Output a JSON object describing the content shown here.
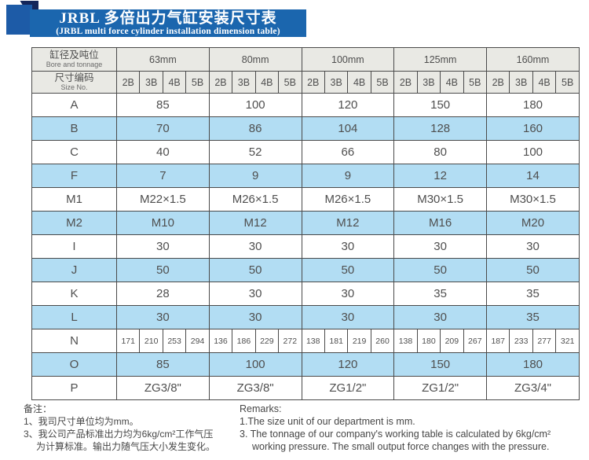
{
  "banner": {
    "title_zh": "JRBL 多倍出力气缸安装尺寸表",
    "title_en": "(JRBL multi force cylinder installation dimension table)",
    "banner_color": "#1b66ae",
    "square_color": "#1d5ba7",
    "fold_color": "#14265a"
  },
  "table": {
    "header": {
      "bore_label_zh": "缸径及吨位",
      "bore_label_en": "Bore and tonnage",
      "size_label_zh": "尺寸编码",
      "size_label_en": "Size No.",
      "groups": [
        "63mm",
        "80mm",
        "100mm",
        "125mm",
        "160mm"
      ],
      "sub_columns": [
        "2B",
        "3B",
        "4B",
        "5B"
      ]
    },
    "rows": [
      {
        "label": "A",
        "type": "group",
        "shade": "white",
        "values": [
          "85",
          "100",
          "120",
          "150",
          "180"
        ]
      },
      {
        "label": "B",
        "type": "group",
        "shade": "blue",
        "values": [
          "70",
          "86",
          "104",
          "128",
          "160"
        ]
      },
      {
        "label": "C",
        "type": "group",
        "shade": "white",
        "values": [
          "40",
          "52",
          "66",
          "80",
          "100"
        ]
      },
      {
        "label": "F",
        "type": "group",
        "shade": "blue",
        "values": [
          "7",
          "9",
          "9",
          "12",
          "14"
        ]
      },
      {
        "label": "M1",
        "type": "group",
        "shade": "white",
        "values": [
          "M22×1.5",
          "M26×1.5",
          "M26×1.5",
          "M30×1.5",
          "M30×1.5"
        ]
      },
      {
        "label": "M2",
        "type": "group",
        "shade": "blue",
        "values": [
          "M10",
          "M12",
          "M12",
          "M16",
          "M20"
        ]
      },
      {
        "label": "I",
        "type": "group",
        "shade": "white",
        "values": [
          "30",
          "30",
          "30",
          "30",
          "30"
        ]
      },
      {
        "label": "J",
        "type": "group",
        "shade": "blue",
        "values": [
          "50",
          "50",
          "50",
          "50",
          "50"
        ]
      },
      {
        "label": "K",
        "type": "group",
        "shade": "white",
        "values": [
          "28",
          "30",
          "30",
          "35",
          "35"
        ]
      },
      {
        "label": "L",
        "type": "group",
        "shade": "blue",
        "values": [
          "30",
          "30",
          "30",
          "30",
          "35"
        ]
      },
      {
        "label": "N",
        "type": "sub",
        "shade": "white",
        "values": [
          "171",
          "210",
          "253",
          "294",
          "136",
          "186",
          "229",
          "272",
          "138",
          "181",
          "219",
          "260",
          "138",
          "180",
          "209",
          "267",
          "187",
          "233",
          "277",
          "321"
        ]
      },
      {
        "label": "O",
        "type": "group",
        "shade": "blue",
        "values": [
          "85",
          "100",
          "120",
          "150",
          "180"
        ]
      },
      {
        "label": "P",
        "type": "group",
        "shade": "white",
        "values": [
          "ZG3/8\"",
          "ZG3/8\"",
          "ZG1/2\"",
          "ZG1/2\"",
          "ZG3/4\""
        ]
      }
    ],
    "colors": {
      "header_bg": "#e9e9e4",
      "row_blue": "#b2ddf3",
      "row_white": "#ffffff",
      "border": "#4a4a4a",
      "text": "#4f4f4f"
    }
  },
  "footer": {
    "zh_lines": [
      "备注：",
      "1、我司尺寸单位均为mm。",
      "3、我公司产品标准出力均为6kg/cm²工作气压",
      "为计算标准。输出力随气压大小发生变化。"
    ],
    "en_lines": [
      "Remarks:",
      "1.The size unit of our department is mm.",
      "3. The tonnage of our company's working table is calculated by 6kg/cm²",
      "working pressure. The small output force changes with the pressure."
    ]
  }
}
